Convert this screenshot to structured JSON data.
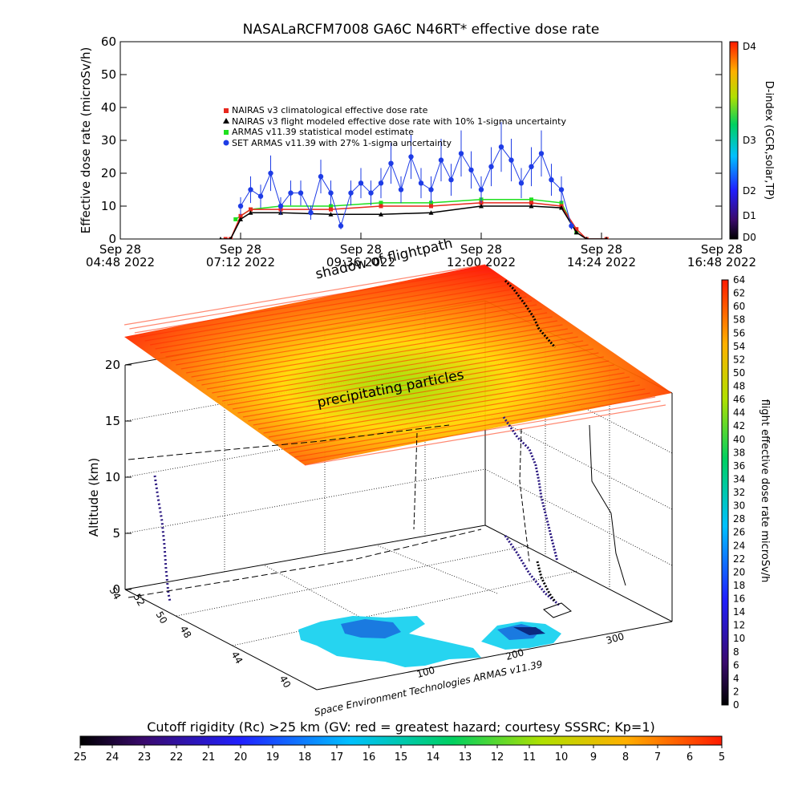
{
  "title": "NASALaRCFM7008  GA6C N46RT* effective dose rate",
  "colors": {
    "nairas_climatological": "#e8281e",
    "nairas_flight": "#000000",
    "armas_statistical": "#1fe01f",
    "set_armas": "#1e3ce6"
  },
  "chart_data": [
    {
      "type": "scatter",
      "ylabel": "Effective dose rate (microSv/h)",
      "xlabel": "",
      "ylim": [
        0,
        60
      ],
      "yticks": [
        "0",
        "10",
        "20",
        "30",
        "40",
        "50",
        "60"
      ],
      "xticks": [
        {
          "line1": "Sep 28",
          "line2": "04:48 2022"
        },
        {
          "line1": "Sep 28",
          "line2": "07:12 2022"
        },
        {
          "line1": "Sep 28",
          "line2": "09:36 2022"
        },
        {
          "line1": "Sep 28",
          "line2": "12:00 2022"
        },
        {
          "line1": "Sep 28",
          "line2": "14:24 2022"
        },
        {
          "line1": "Sep 28",
          "line2": "16:48 2022"
        }
      ],
      "xlim_hours": [
        4.8,
        16.8
      ],
      "legend": [
        "NAIRAS v3 climatological effective dose rate",
        "NAIRAS v3 flight modeled effective dose rate with 10% 1-sigma uncertainty",
        "ARMAS v11.39 statistical model estimate",
        "SET ARMAS v11.39 with 27% 1-sigma uncertainty"
      ],
      "legend_position": "upper-left",
      "series": [
        {
          "name": "NAIRAS v3 climatological effective dose rate",
          "x": [
            6.9,
            7.0,
            7.2,
            7.4,
            8.0,
            9.0,
            10.0,
            11.0,
            12.0,
            13.0,
            13.6,
            13.9,
            14.1,
            14.5
          ],
          "y": [
            0,
            0,
            7,
            9,
            9,
            9,
            10,
            10,
            11,
            11,
            10,
            3,
            0,
            0
          ]
        },
        {
          "name": "NAIRAS v3 flight modeled effective dose rate with 10% 1-sigma uncertainty",
          "x": [
            6.8,
            7.0,
            7.2,
            7.4,
            8.0,
            9.0,
            10.0,
            11.0,
            12.0,
            13.0,
            13.6,
            13.9,
            14.1,
            14.5
          ],
          "y": [
            0,
            0,
            6,
            8,
            8,
            7.5,
            7.5,
            8,
            10,
            10,
            9.5,
            2,
            0,
            0
          ]
        },
        {
          "name": "ARMAS v11.39 statistical model estimate",
          "x": [
            7.1,
            7.4,
            8.0,
            9.0,
            10.0,
            11.0,
            12.0,
            13.0,
            13.6,
            13.9
          ],
          "y": [
            6,
            9,
            10,
            10,
            11,
            11,
            12,
            12,
            11,
            2
          ]
        },
        {
          "name": "SET ARMAS v11.39 with 27% 1-sigma uncertainty",
          "x": [
            7.2,
            7.4,
            7.6,
            7.8,
            8.0,
            8.2,
            8.4,
            8.6,
            8.8,
            9.0,
            9.2,
            9.4,
            9.6,
            9.8,
            10.0,
            10.2,
            10.4,
            10.6,
            10.8,
            11.0,
            11.2,
            11.4,
            11.6,
            11.8,
            12.0,
            12.2,
            12.4,
            12.6,
            12.8,
            13.0,
            13.2,
            13.4,
            13.6,
            13.8
          ],
          "y": [
            10,
            15,
            13,
            20,
            10,
            14,
            14,
            8,
            19,
            14,
            4,
            14,
            17,
            14,
            17,
            23,
            15,
            25,
            17,
            15,
            24,
            18,
            26,
            21,
            15,
            22,
            28,
            24,
            17,
            22,
            26,
            18,
            15,
            4
          ]
        }
      ]
    },
    {
      "type": "scatter",
      "colorbar": {
        "label": "D-index (GCR,solar,TP)",
        "ticks": [
          "D0",
          "D1",
          "D2",
          "D3",
          "D4"
        ]
      }
    },
    {
      "type": "scatter",
      "ylabel": "Altitude (km)",
      "zticks": [
        "0",
        "5",
        "10",
        "15",
        "20"
      ],
      "lat_ticks": [
        "40",
        "44",
        "48",
        "50",
        "52",
        "54"
      ],
      "lon_ticks": [
        "100",
        "200",
        "300"
      ],
      "labels": [
        "shadow of flightpath",
        "precipitating particles"
      ],
      "credit": "Space Environment Technologies ARMAS v11.39"
    },
    {
      "type": "heatmap",
      "colorbar": {
        "label": "flight effective dose rate microSv/h",
        "min": 0,
        "max": 64,
        "ticks": [
          "0",
          "2",
          "4",
          "6",
          "8",
          "10",
          "12",
          "14",
          "16",
          "18",
          "20",
          "22",
          "24",
          "26",
          "28",
          "30",
          "32",
          "34",
          "36",
          "38",
          "40",
          "42",
          "44",
          "46",
          "48",
          "50",
          "52",
          "54",
          "56",
          "58",
          "60",
          "62",
          "64"
        ]
      }
    },
    {
      "type": "heatmap",
      "colorbar": {
        "label": "Cutoff rigidity (Rc) >25 km (GV: red = greatest hazard; courtesy SSSRC; Kp=1)",
        "ticks": [
          "25",
          "24",
          "23",
          "22",
          "21",
          "20",
          "19",
          "18",
          "17",
          "16",
          "15",
          "14",
          "13",
          "12",
          "11",
          "10",
          "9",
          "8",
          "7",
          "6",
          "5"
        ]
      }
    }
  ]
}
